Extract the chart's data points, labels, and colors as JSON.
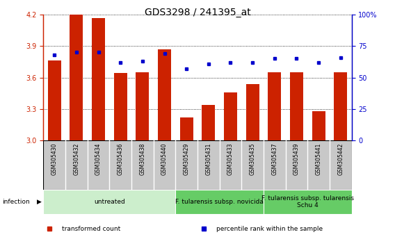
{
  "title": "GDS3298 / 241395_at",
  "samples": [
    "GSM305430",
    "GSM305432",
    "GSM305434",
    "GSM305436",
    "GSM305438",
    "GSM305440",
    "GSM305429",
    "GSM305431",
    "GSM305433",
    "GSM305435",
    "GSM305437",
    "GSM305439",
    "GSM305441",
    "GSM305442"
  ],
  "transformed_count": [
    3.76,
    4.2,
    4.17,
    3.64,
    3.65,
    3.87,
    3.22,
    3.34,
    3.46,
    3.54,
    3.65,
    3.65,
    3.28,
    3.65
  ],
  "percentile_rank": [
    68,
    70,
    70,
    62,
    63,
    69,
    57,
    61,
    62,
    62,
    65,
    65,
    62,
    66
  ],
  "ylim_left": [
    3.0,
    4.2
  ],
  "ylim_right": [
    0,
    100
  ],
  "yticks_left": [
    3.0,
    3.3,
    3.6,
    3.9,
    4.2
  ],
  "yticks_right": [
    0,
    25,
    50,
    75,
    100
  ],
  "bar_color": "#CC2200",
  "dot_color": "#0000CC",
  "bar_bottom": 3.0,
  "grid_color": "#000000",
  "background_color": "#FFFFFF",
  "tick_label_bg": "#C8C8C8",
  "groups": [
    {
      "label": "untreated",
      "start": 0,
      "end": 6,
      "color": "#CCEECC"
    },
    {
      "label": "F. tularensis subsp. novicida",
      "start": 6,
      "end": 10,
      "color": "#66CC66"
    },
    {
      "label": "F. tularensis subsp. tularensis\nSchu 4",
      "start": 10,
      "end": 14,
      "color": "#66CC66"
    }
  ],
  "infection_label": "infection",
  "legend_items": [
    {
      "color": "#CC2200",
      "label": "transformed count"
    },
    {
      "color": "#0000CC",
      "label": "percentile rank within the sample"
    }
  ],
  "title_fontsize": 10,
  "tick_fontsize": 7,
  "group_fontsize": 6.5,
  "sample_fontsize": 5.5
}
